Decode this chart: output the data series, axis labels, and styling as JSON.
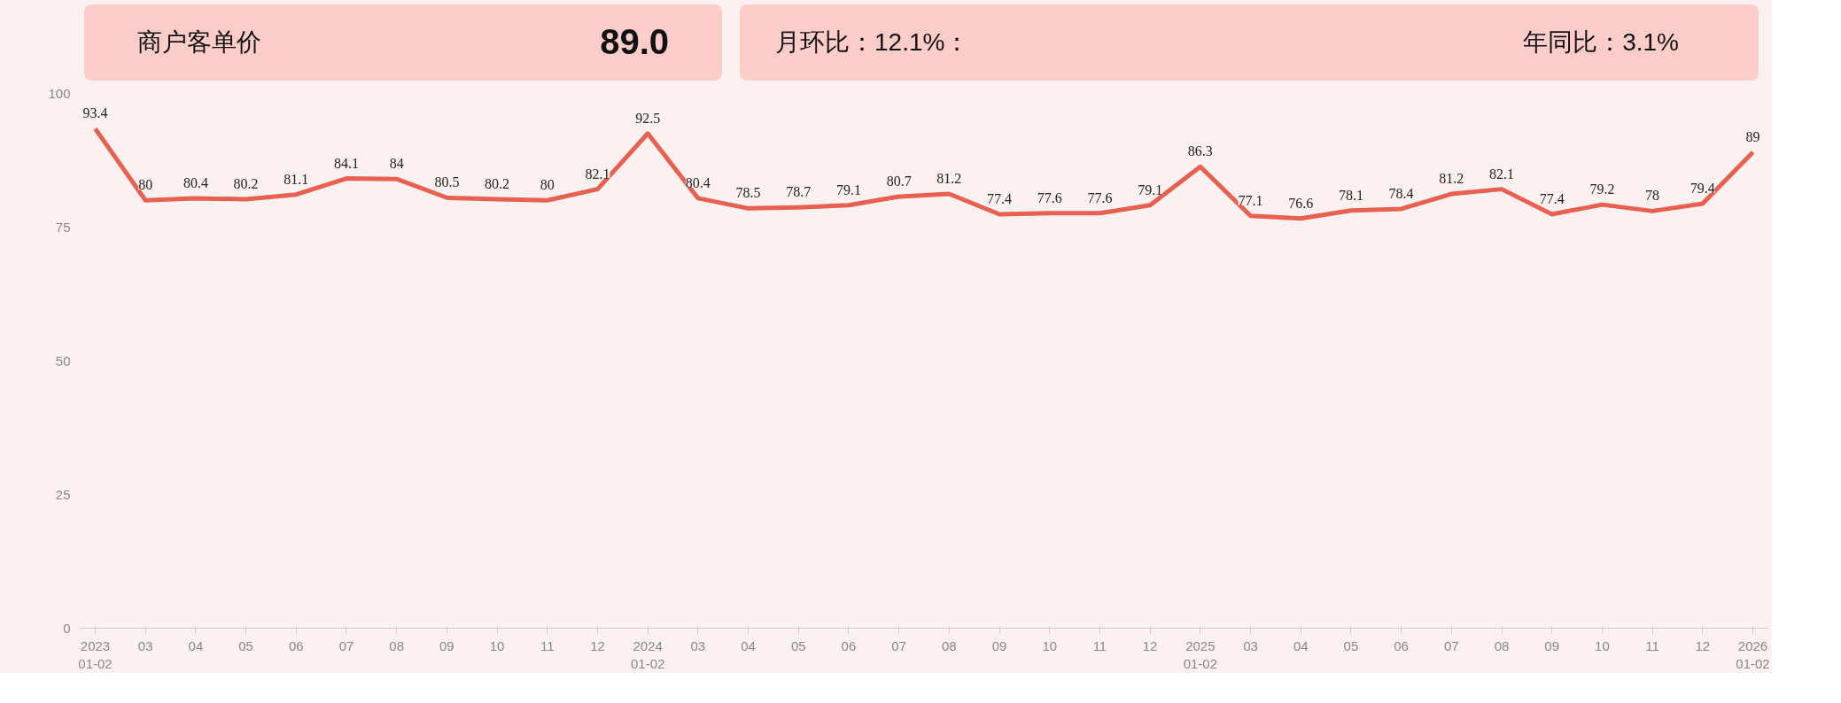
{
  "chart_data": {
    "type": "line",
    "title": "商户客单价",
    "annotations": [
      "89.0",
      "月环比：12.1%：",
      "年同比：3.1%"
    ],
    "categories": [
      "2023\n01-02",
      "03",
      "04",
      "05",
      "06",
      "07",
      "08",
      "09",
      "10",
      "11",
      "12",
      "2024\n01-02",
      "03",
      "04",
      "05",
      "06",
      "07",
      "08",
      "09",
      "10",
      "11",
      "12",
      "2025\n01-02",
      "03",
      "04",
      "05",
      "06",
      "07",
      "08",
      "09",
      "10",
      "11",
      "12",
      "2026\n01-02"
    ],
    "series": [
      {
        "color": "#e8604f",
        "values": [
          93.4,
          80,
          80.4,
          80.2,
          81.1,
          84.1,
          84,
          80.5,
          80.2,
          80,
          82.1,
          92.5,
          80.4,
          78.5,
          78.7,
          79.1,
          80.7,
          81.2,
          77.4,
          77.6,
          77.6,
          79.1,
          86.3,
          77.1,
          76.6,
          78.1,
          78.4,
          81.2,
          82.1,
          77.4,
          79.2,
          78,
          79.4,
          89
        ]
      }
    ],
    "ylim": [
      0,
      100
    ],
    "yticks": [
      0,
      25,
      50,
      75,
      100
    ],
    "grid": false,
    "data_labels": true,
    "line_style": "solid"
  }
}
